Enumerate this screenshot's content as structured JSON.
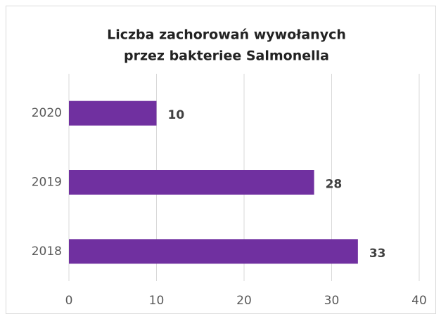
{
  "chart_data": {
    "type": "bar",
    "orientation": "horizontal",
    "title": [
      "Liczba zachorowań wywołanych",
      "przez bakteriee Salmonella"
    ],
    "categories": [
      "2020",
      "2019",
      "2018"
    ],
    "values": [
      10,
      28,
      33
    ],
    "color": "#7030a0",
    "xlim": [
      0,
      40
    ],
    "xticks": [
      0,
      10,
      20,
      30,
      40
    ],
    "grid": true
  }
}
